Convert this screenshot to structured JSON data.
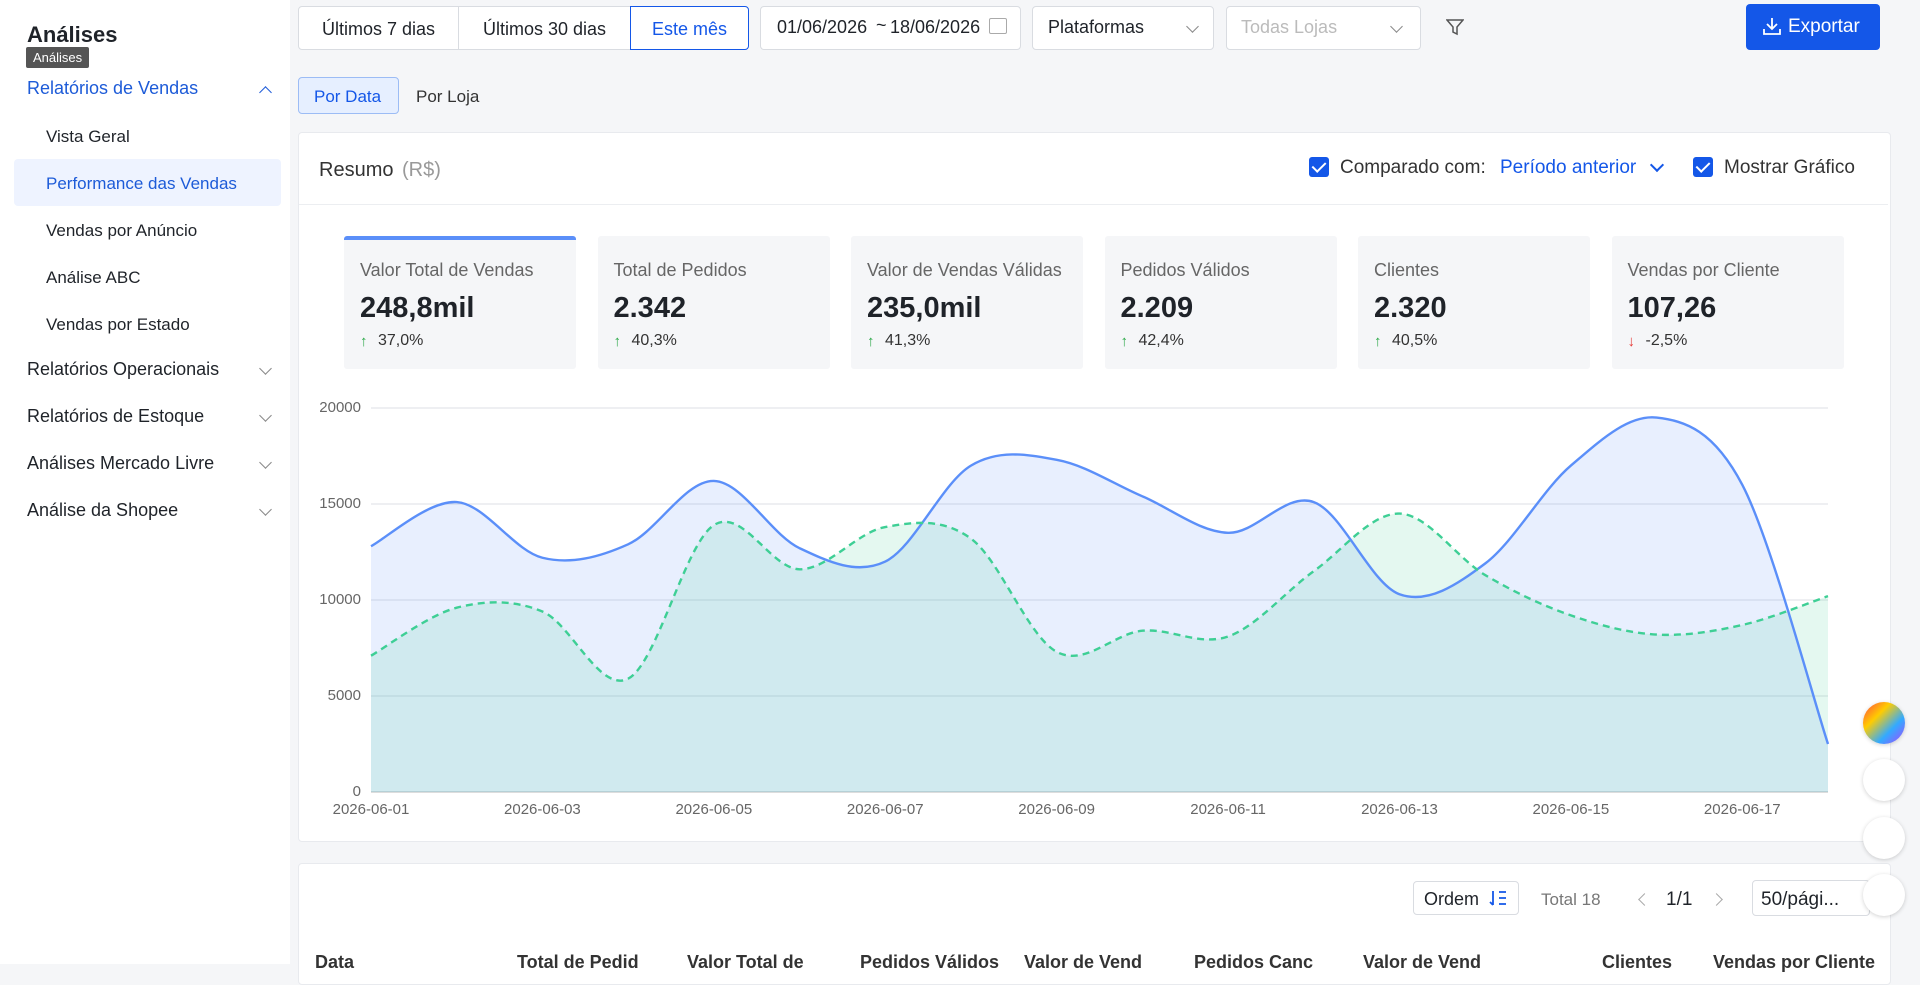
{
  "sidebar": {
    "title": "Análises",
    "tooltip": "Análises",
    "menu": [
      {
        "label": "Relatórios de Vendas",
        "items": [
          "Vista Geral",
          "Performance das Vendas",
          "Vendas por Anúncio",
          "Análise ABC",
          "Vendas por Estado"
        ]
      },
      {
        "label": "Relatórios Operacionais"
      },
      {
        "label": "Relatórios de Estoque"
      },
      {
        "label": "Análises Mercado Livre"
      },
      {
        "label": "Análise da Shopee"
      }
    ]
  },
  "toolbar": {
    "periods": [
      "Últimos 7 dias",
      "Últimos 30 dias",
      "Este mês"
    ],
    "date_start": "01/06/2026",
    "date_separator": "~",
    "date_end": "18/06/2026",
    "platform": "Plataformas",
    "stores": "Todas Lojas",
    "export": "Exportar"
  },
  "tabs": [
    "Por Data",
    "Por Loja"
  ],
  "summary": {
    "title": "Resumo",
    "unit": "(R$)",
    "compare_label": "Comparado com:",
    "compare_value": "Período anterior",
    "show_chart": "Mostrar Gráfico",
    "cards": [
      {
        "label": "Valor Total de Vendas",
        "value": "248,8mil",
        "change": "37,0%"
      },
      {
        "label": "Total de Pedidos",
        "value": "2.342",
        "change": "40,3%"
      },
      {
        "label": "Valor de Vendas Válidas",
        "value": "235,0mil",
        "change": "41,3%"
      },
      {
        "label": "Pedidos Válidos",
        "value": "2.209",
        "change": "42,4%"
      },
      {
        "label": "Clientes",
        "value": "2.320",
        "change": "40,5%"
      },
      {
        "label": "Vendas por Cliente",
        "value": "107,26",
        "change": "-2,5%"
      }
    ]
  },
  "chart_data": {
    "type": "area",
    "x": [
      "2026-06-01",
      null,
      "2026-06-03",
      null,
      "2026-06-05",
      null,
      "2026-06-07",
      null,
      "2026-06-09",
      null,
      "2026-06-11",
      null,
      "2026-06-13",
      null,
      "2026-06-15",
      null,
      "2026-06-17",
      null
    ],
    "series": [
      {
        "color": "#5b8ff9",
        "values": [
          12800,
          15100,
          12200,
          12900,
          16200,
          12700,
          12000,
          17000,
          17300,
          15400,
          13500,
          15100,
          10300,
          11900,
          17000,
          19500,
          16000,
          2500
        ]
      },
      {
        "color": "#3ecf95",
        "dashed": true,
        "values": [
          7100,
          9600,
          9400,
          5900,
          13900,
          11600,
          13800,
          13200,
          7300,
          8400,
          8100,
          11500,
          14500,
          11300,
          9200,
          8200,
          8700,
          10200
        ]
      }
    ],
    "ylim": [
      0,
      20000
    ],
    "yticks": [
      0,
      5000,
      10000,
      15000,
      20000
    ],
    "grid": true
  },
  "table": {
    "order": "Ordem",
    "total": "Total 18",
    "page": "1/1",
    "page_size": "50/pági...",
    "columns": [
      "Data",
      "Total de Pedid",
      "Valor Total de",
      "Pedidos Válidos",
      "Valor de Vend",
      "Pedidos Canc",
      "Valor de Vend",
      "Clientes",
      "Vendas por Cliente"
    ]
  }
}
